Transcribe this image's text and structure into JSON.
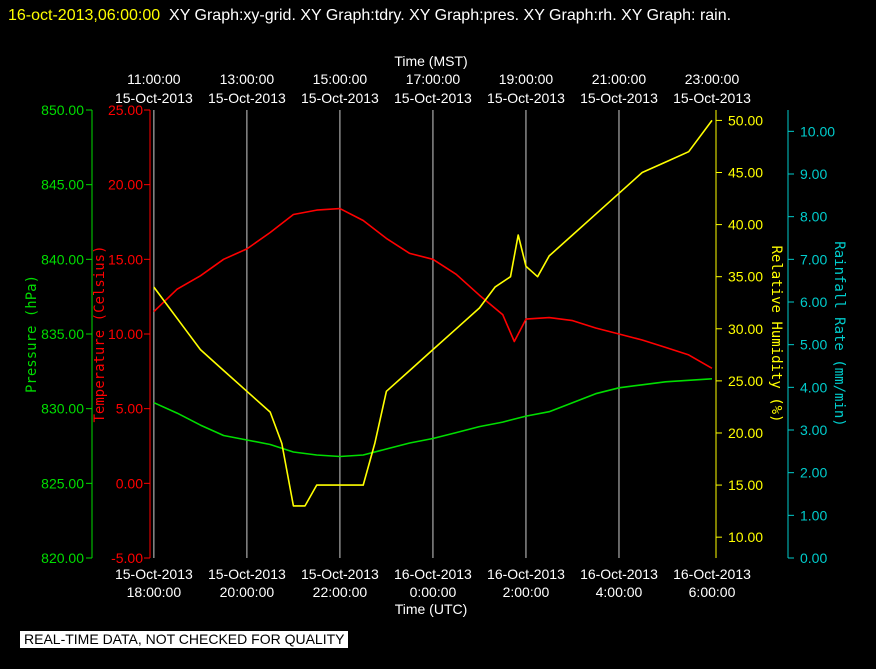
{
  "header": {
    "timestamp": "16-oct-2013,06:00:00",
    "graphs": "XY Graph:xy-grid.  XY Graph:tdry.  XY Graph:pres.  XY Graph:rh.  XY Graph: rain."
  },
  "notice": "REAL-TIME DATA, NOT CHECKED FOR QUALITY",
  "colors": {
    "temperature": "#ff0000",
    "pressure": "#00dd00",
    "humidity": "#ffff00",
    "rain": "#00cccc",
    "grid": "#ffffff"
  },
  "chart_data": {
    "type": "line",
    "x_top_label": "Time (MST)",
    "x_bottom_label": "Time (UTC)",
    "x_ticks_top": [
      [
        "11:00:00",
        "15-Oct-2013"
      ],
      [
        "13:00:00",
        "15-Oct-2013"
      ],
      [
        "15:00:00",
        "15-Oct-2013"
      ],
      [
        "17:00:00",
        "15-Oct-2013"
      ],
      [
        "19:00:00",
        "15-Oct-2013"
      ],
      [
        "21:00:00",
        "15-Oct-2013"
      ],
      [
        "23:00:00",
        "15-Oct-2013"
      ]
    ],
    "x_ticks_bottom": [
      [
        "15-Oct-2013",
        "18:00:00"
      ],
      [
        "15-Oct-2013",
        "20:00:00"
      ],
      [
        "15-Oct-2013",
        "22:00:00"
      ],
      [
        "16-Oct-2013",
        "0:00:00"
      ],
      [
        "16-Oct-2013",
        "2:00:00"
      ],
      [
        "16-Oct-2013",
        "4:00:00"
      ],
      [
        "16-Oct-2013",
        "6:00:00"
      ]
    ],
    "x_range_utc": [
      "15-Oct-2013 17:55:00",
      "16-Oct-2013 06:00:00"
    ],
    "axes": {
      "pressure": {
        "label": "Pressure (hPa)",
        "range": [
          820,
          850
        ],
        "ticks": [
          "820.00",
          "825.00",
          "830.00",
          "835.00",
          "840.00",
          "845.00",
          "850.00"
        ]
      },
      "temperature": {
        "label": "Temperature (Celsius)",
        "range": [
          -5,
          25
        ],
        "ticks": [
          "-5.00",
          "0.00",
          "5.00",
          "10.00",
          "15.00",
          "20.00",
          "25.00"
        ]
      },
      "humidity": {
        "label": "Relative Humidity (%)",
        "range": [
          8,
          51
        ],
        "ticks": [
          "10.00",
          "15.00",
          "20.00",
          "25.00",
          "30.00",
          "35.00",
          "40.00",
          "45.00",
          "50.00"
        ]
      },
      "rain": {
        "label": "Rainfall Rate (mm/min)",
        "range": [
          0,
          10.5
        ],
        "ticks": [
          "0.00",
          "1.00",
          "2.00",
          "3.00",
          "4.00",
          "5.00",
          "6.00",
          "7.00",
          "8.00",
          "9.00",
          "10.00"
        ]
      }
    },
    "series": [
      {
        "name": "Temperature (Celsius)",
        "axis": "temperature",
        "x": [
          "15-Oct-2013 18:00",
          "15-Oct-2013 18:30",
          "15-Oct-2013 19:00",
          "15-Oct-2013 19:30",
          "15-Oct-2013 20:00",
          "15-Oct-2013 20:30",
          "15-Oct-2013 21:00",
          "15-Oct-2013 21:30",
          "15-Oct-2013 22:00",
          "15-Oct-2013 22:30",
          "15-Oct-2013 23:00",
          "15-Oct-2013 23:30",
          "16-Oct-2013 00:00",
          "16-Oct-2013 00:30",
          "16-Oct-2013 01:00",
          "16-Oct-2013 01:30",
          "16-Oct-2013 01:45",
          "16-Oct-2013 02:00",
          "16-Oct-2013 02:30",
          "16-Oct-2013 03:00",
          "16-Oct-2013 03:30",
          "16-Oct-2013 04:00",
          "16-Oct-2013 04:30",
          "16-Oct-2013 05:00",
          "16-Oct-2013 05:30",
          "16-Oct-2013 06:00"
        ],
        "values": [
          11.5,
          13.0,
          13.9,
          15.0,
          15.7,
          16.8,
          18.0,
          18.3,
          18.4,
          17.6,
          16.4,
          15.4,
          15.0,
          14.0,
          12.6,
          11.3,
          9.5,
          11.0,
          11.1,
          10.9,
          10.4,
          10.0,
          9.6,
          9.1,
          8.6,
          7.7
        ]
      },
      {
        "name": "Pressure (hPa)",
        "axis": "pressure",
        "x": [
          "15-Oct-2013 18:00",
          "15-Oct-2013 18:30",
          "15-Oct-2013 19:00",
          "15-Oct-2013 19:30",
          "15-Oct-2013 20:00",
          "15-Oct-2013 20:30",
          "15-Oct-2013 21:00",
          "15-Oct-2013 21:30",
          "15-Oct-2013 22:00",
          "15-Oct-2013 22:30",
          "15-Oct-2013 23:00",
          "15-Oct-2013 23:30",
          "16-Oct-2013 00:00",
          "16-Oct-2013 00:30",
          "16-Oct-2013 01:00",
          "16-Oct-2013 01:30",
          "16-Oct-2013 02:00",
          "16-Oct-2013 02:30",
          "16-Oct-2013 03:00",
          "16-Oct-2013 03:30",
          "16-Oct-2013 04:00",
          "16-Oct-2013 04:30",
          "16-Oct-2013 05:00",
          "16-Oct-2013 05:30",
          "16-Oct-2013 06:00"
        ],
        "values": [
          830.4,
          829.7,
          828.9,
          828.2,
          827.9,
          827.6,
          827.1,
          826.9,
          826.8,
          826.9,
          827.3,
          827.7,
          828.0,
          828.4,
          828.8,
          829.1,
          829.5,
          829.8,
          830.4,
          831.0,
          831.4,
          831.6,
          831.8,
          831.9,
          832.0
        ]
      },
      {
        "name": "Relative Humidity (%)",
        "axis": "humidity",
        "x": [
          "15-Oct-2013 18:00",
          "15-Oct-2013 18:20",
          "15-Oct-2013 18:40",
          "15-Oct-2013 19:00",
          "15-Oct-2013 19:30",
          "15-Oct-2013 20:00",
          "15-Oct-2013 20:30",
          "15-Oct-2013 20:45",
          "15-Oct-2013 21:00",
          "15-Oct-2013 21:15",
          "15-Oct-2013 21:30",
          "15-Oct-2013 22:00",
          "15-Oct-2013 22:30",
          "15-Oct-2013 22:45",
          "15-Oct-2013 23:00",
          "15-Oct-2013 23:30",
          "16-Oct-2013 00:00",
          "16-Oct-2013 00:30",
          "16-Oct-2013 01:00",
          "16-Oct-2013 01:20",
          "16-Oct-2013 01:40",
          "16-Oct-2013 01:50",
          "16-Oct-2013 02:00",
          "16-Oct-2013 02:15",
          "16-Oct-2013 02:30",
          "16-Oct-2013 03:00",
          "16-Oct-2013 03:30",
          "16-Oct-2013 04:00",
          "16-Oct-2013 04:30",
          "16-Oct-2013 05:00",
          "16-Oct-2013 05:30",
          "16-Oct-2013 06:00"
        ],
        "values": [
          34,
          32,
          30,
          28,
          26,
          24,
          22,
          19,
          13,
          13,
          15,
          15,
          15,
          19,
          24,
          26,
          28,
          30,
          32,
          34,
          35,
          39,
          36,
          35,
          37,
          39,
          41,
          43,
          45,
          46,
          47,
          50
        ]
      }
    ]
  }
}
